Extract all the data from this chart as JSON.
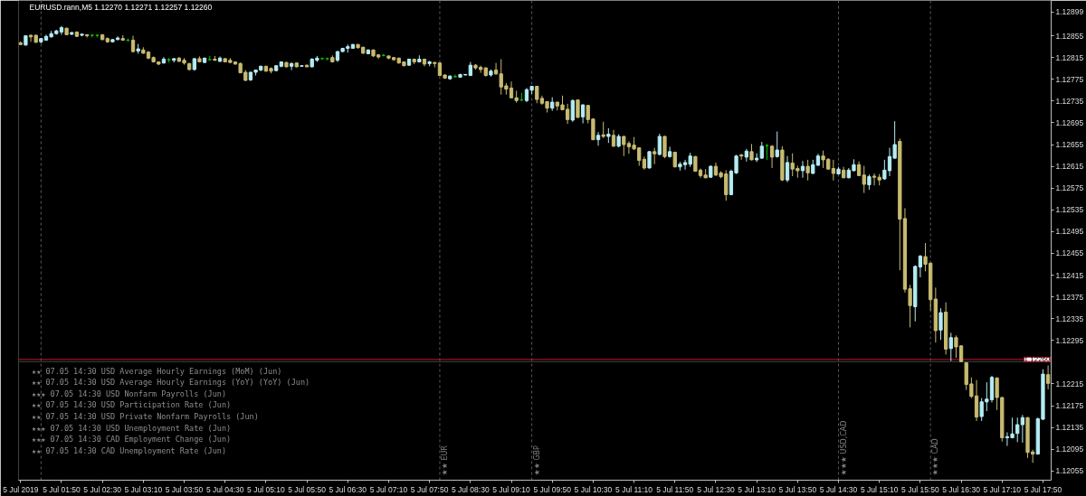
{
  "chart_data": {
    "type": "candlestick",
    "title": "EURUSD.rann,M5 1.12270 1.12271 1.12257 1.12260",
    "x": [
      "2019-07-05T01:10",
      "2019-07-05T01:15",
      "2019-07-05T01:20",
      "2019-07-05T01:25",
      "2019-07-05T01:30",
      "2019-07-05T01:35",
      "2019-07-05T01:40",
      "2019-07-05T01:45",
      "2019-07-05T01:50",
      "2019-07-05T01:55",
      "2019-07-05T02:00",
      "2019-07-05T02:05",
      "2019-07-05T02:10",
      "2019-07-05T02:15",
      "2019-07-05T02:20",
      "2019-07-05T02:25",
      "2019-07-05T02:30",
      "2019-07-05T02:35",
      "2019-07-05T02:40",
      "2019-07-05T02:45",
      "2019-07-05T02:50",
      "2019-07-05T02:55",
      "2019-07-05T03:00",
      "2019-07-05T03:05",
      "2019-07-05T03:10",
      "2019-07-05T03:15",
      "2019-07-05T03:20",
      "2019-07-05T03:25",
      "2019-07-05T03:30",
      "2019-07-05T03:35",
      "2019-07-05T03:40",
      "2019-07-05T03:45",
      "2019-07-05T03:50",
      "2019-07-05T03:55",
      "2019-07-05T04:00",
      "2019-07-05T04:05",
      "2019-07-05T04:10",
      "2019-07-05T04:15",
      "2019-07-05T04:20",
      "2019-07-05T04:25",
      "2019-07-05T04:30",
      "2019-07-05T04:35",
      "2019-07-05T04:40",
      "2019-07-05T04:45",
      "2019-07-05T04:50",
      "2019-07-05T04:55",
      "2019-07-05T05:00",
      "2019-07-05T05:05",
      "2019-07-05T05:10",
      "2019-07-05T05:15",
      "2019-07-05T05:20",
      "2019-07-05T05:25",
      "2019-07-05T05:30",
      "2019-07-05T05:35",
      "2019-07-05T05:40",
      "2019-07-05T05:45",
      "2019-07-05T05:50",
      "2019-07-05T05:55",
      "2019-07-05T06:00",
      "2019-07-05T06:05",
      "2019-07-05T06:10",
      "2019-07-05T06:15",
      "2019-07-05T06:20",
      "2019-07-05T06:25",
      "2019-07-05T06:30",
      "2019-07-05T06:35",
      "2019-07-05T06:40",
      "2019-07-05T06:45",
      "2019-07-05T06:50",
      "2019-07-05T06:55",
      "2019-07-05T07:00",
      "2019-07-05T07:05",
      "2019-07-05T07:10",
      "2019-07-05T07:15",
      "2019-07-05T07:20",
      "2019-07-05T07:25",
      "2019-07-05T07:30",
      "2019-07-05T07:35",
      "2019-07-05T07:40",
      "2019-07-05T07:45",
      "2019-07-05T07:50",
      "2019-07-05T07:55",
      "2019-07-05T08:00",
      "2019-07-05T08:05",
      "2019-07-05T08:10",
      "2019-07-05T08:15",
      "2019-07-05T08:20",
      "2019-07-05T08:25",
      "2019-07-05T08:30",
      "2019-07-05T08:35",
      "2019-07-05T08:40",
      "2019-07-05T08:45",
      "2019-07-05T08:50",
      "2019-07-05T08:55",
      "2019-07-05T09:00",
      "2019-07-05T09:05",
      "2019-07-05T09:10",
      "2019-07-05T09:15",
      "2019-07-05T09:20",
      "2019-07-05T09:25",
      "2019-07-05T09:30",
      "2019-07-05T09:35",
      "2019-07-05T09:40",
      "2019-07-05T09:45",
      "2019-07-05T09:50",
      "2019-07-05T09:55",
      "2019-07-05T10:00",
      "2019-07-05T10:05",
      "2019-07-05T10:10",
      "2019-07-05T10:15",
      "2019-07-05T10:20",
      "2019-07-05T10:25",
      "2019-07-05T10:30",
      "2019-07-05T10:35",
      "2019-07-05T10:40",
      "2019-07-05T10:45",
      "2019-07-05T10:50",
      "2019-07-05T10:55",
      "2019-07-05T11:00",
      "2019-07-05T11:05",
      "2019-07-05T11:10",
      "2019-07-05T11:15",
      "2019-07-05T11:20",
      "2019-07-05T11:25",
      "2019-07-05T11:30",
      "2019-07-05T11:35",
      "2019-07-05T11:40",
      "2019-07-05T11:45",
      "2019-07-05T11:50",
      "2019-07-05T11:55",
      "2019-07-05T12:00",
      "2019-07-05T12:05",
      "2019-07-05T12:10",
      "2019-07-05T12:15",
      "2019-07-05T12:20",
      "2019-07-05T12:25",
      "2019-07-05T12:30",
      "2019-07-05T12:35",
      "2019-07-05T12:40",
      "2019-07-05T12:45",
      "2019-07-05T12:50",
      "2019-07-05T12:55",
      "2019-07-05T13:00",
      "2019-07-05T13:05",
      "2019-07-05T13:10",
      "2019-07-05T13:15",
      "2019-07-05T13:20",
      "2019-07-05T13:25",
      "2019-07-05T13:30",
      "2019-07-05T13:35",
      "2019-07-05T13:40",
      "2019-07-05T13:45",
      "2019-07-05T13:50",
      "2019-07-05T13:55",
      "2019-07-05T14:00",
      "2019-07-05T14:05",
      "2019-07-05T14:10",
      "2019-07-05T14:15",
      "2019-07-05T14:20",
      "2019-07-05T14:25",
      "2019-07-05T14:30",
      "2019-07-05T14:35",
      "2019-07-05T14:40",
      "2019-07-05T14:45",
      "2019-07-05T14:50",
      "2019-07-05T14:55",
      "2019-07-05T15:00",
      "2019-07-05T15:05",
      "2019-07-05T15:10",
      "2019-07-05T15:15",
      "2019-07-05T15:20",
      "2019-07-05T15:25",
      "2019-07-05T15:30",
      "2019-07-05T15:35",
      "2019-07-05T15:40",
      "2019-07-05T15:45",
      "2019-07-05T15:50",
      "2019-07-05T15:55",
      "2019-07-05T16:00",
      "2019-07-05T16:05",
      "2019-07-05T16:10",
      "2019-07-05T16:15",
      "2019-07-05T16:20",
      "2019-07-05T16:25",
      "2019-07-05T16:30",
      "2019-07-05T16:35",
      "2019-07-05T16:40",
      "2019-07-05T16:45",
      "2019-07-05T16:50",
      "2019-07-05T16:55",
      "2019-07-05T17:00",
      "2019-07-05T17:05",
      "2019-07-05T17:10",
      "2019-07-05T17:15",
      "2019-07-05T17:20",
      "2019-07-05T17:25",
      "2019-07-05T17:30",
      "2019-07-05T17:35",
      "2019-07-05T17:40",
      "2019-07-05T17:45",
      "2019-07-05T17:50",
      "2019-07-05T17:55"
    ],
    "ohlc": [
      [
        1.12842,
        1.12845,
        1.12838,
        1.12839
      ],
      [
        1.12838,
        1.12856,
        1.12837,
        1.12855
      ],
      [
        1.12856,
        1.12857,
        1.12844,
        1.12853
      ],
      [
        1.12856,
        1.12857,
        1.12842,
        1.12843
      ],
      [
        1.12844,
        1.12851,
        1.12841,
        1.1285
      ],
      [
        1.12847,
        1.12857,
        1.12846,
        1.12854
      ],
      [
        1.12853,
        1.12864,
        1.12852,
        1.12859
      ],
      [
        1.12859,
        1.12866,
        1.12857,
        1.12864
      ],
      [
        1.12862,
        1.12873,
        1.12857,
        1.1287
      ],
      [
        1.12869,
        1.1287,
        1.12856,
        1.12857
      ],
      [
        1.12858,
        1.12862,
        1.12856,
        1.12861
      ],
      [
        1.12862,
        1.12863,
        1.12853,
        1.12854
      ],
      [
        1.12856,
        1.12859,
        1.12854,
        1.12858
      ],
      [
        1.12857,
        1.12858,
        1.12852,
        1.12855
      ],
      [
        1.12856,
        1.12858,
        1.12852,
        1.12856
      ],
      [
        1.12856,
        1.12857,
        1.12852,
        1.12856
      ],
      [
        1.12857,
        1.12858,
        1.12847,
        1.12848
      ],
      [
        1.1285,
        1.12852,
        1.12842,
        1.12844
      ],
      [
        1.12844,
        1.12849,
        1.12843,
        1.12848
      ],
      [
        1.12848,
        1.12854,
        1.12847,
        1.12851
      ],
      [
        1.1285,
        1.12856,
        1.12846,
        1.12847
      ],
      [
        1.12847,
        1.1285,
        1.12844,
        1.12847
      ],
      [
        1.12847,
        1.12855,
        1.12824,
        1.12826
      ],
      [
        1.12827,
        1.1284,
        1.12822,
        1.12831
      ],
      [
        1.12829,
        1.12834,
        1.12822,
        1.12823
      ],
      [
        1.12825,
        1.12827,
        1.12812,
        1.12814
      ],
      [
        1.12815,
        1.12817,
        1.12806,
        1.12807
      ],
      [
        1.12807,
        1.12808,
        1.12801,
        1.12803
      ],
      [
        1.12805,
        1.12816,
        1.12804,
        1.12812
      ],
      [
        1.12811,
        1.12814,
        1.12806,
        1.12811
      ],
      [
        1.1281,
        1.12814,
        1.12806,
        1.12813
      ],
      [
        1.12814,
        1.12816,
        1.12807,
        1.12808
      ],
      [
        1.1281,
        1.12814,
        1.12802,
        1.12805
      ],
      [
        1.12804,
        1.12805,
        1.12791,
        1.12793
      ],
      [
        1.12793,
        1.12814,
        1.12791,
        1.12813
      ],
      [
        1.12813,
        1.12817,
        1.12806,
        1.12807
      ],
      [
        1.12806,
        1.12815,
        1.12805,
        1.12814
      ],
      [
        1.12811,
        1.12818,
        1.1281,
        1.12811
      ],
      [
        1.12812,
        1.12818,
        1.12809,
        1.1281
      ],
      [
        1.12808,
        1.12817,
        1.12807,
        1.12814
      ],
      [
        1.12813,
        1.12814,
        1.12806,
        1.12807
      ],
      [
        1.1281,
        1.12814,
        1.12805,
        1.12806
      ],
      [
        1.12807,
        1.12808,
        1.12802,
        1.12803
      ],
      [
        1.12804,
        1.12806,
        1.12786,
        1.12787
      ],
      [
        1.12788,
        1.12792,
        1.12772,
        1.12773
      ],
      [
        1.12774,
        1.12789,
        1.12772,
        1.12788
      ],
      [
        1.12788,
        1.12793,
        1.12782,
        1.12792
      ],
      [
        1.12792,
        1.128,
        1.1279,
        1.12799
      ],
      [
        1.12799,
        1.128,
        1.12789,
        1.1279
      ],
      [
        1.12795,
        1.12797,
        1.12786,
        1.1279
      ],
      [
        1.12791,
        1.12801,
        1.1279,
        1.128
      ],
      [
        1.12799,
        1.12808,
        1.12797,
        1.12807
      ],
      [
        1.12806,
        1.12807,
        1.12797,
        1.12798
      ],
      [
        1.12799,
        1.12806,
        1.12792,
        1.12804
      ],
      [
        1.12805,
        1.12806,
        1.12797,
        1.12798
      ],
      [
        1.12799,
        1.12801,
        1.12798,
        1.128
      ],
      [
        1.12801,
        1.12802,
        1.12797,
        1.12798
      ],
      [
        1.12798,
        1.12814,
        1.12797,
        1.12812
      ],
      [
        1.1281,
        1.12818,
        1.12807,
        1.12814
      ],
      [
        1.12813,
        1.12815,
        1.12811,
        1.12813
      ],
      [
        1.12813,
        1.12815,
        1.1281,
        1.12813
      ],
      [
        1.12815,
        1.12819,
        1.12806,
        1.12807
      ],
      [
        1.1281,
        1.12827,
        1.12807,
        1.12826
      ],
      [
        1.12826,
        1.12833,
        1.12825,
        1.12832
      ],
      [
        1.12832,
        1.12839,
        1.12824,
        1.12835
      ],
      [
        1.12832,
        1.1284,
        1.12831,
        1.12839
      ],
      [
        1.12839,
        1.1284,
        1.12832,
        1.12833
      ],
      [
        1.12834,
        1.12835,
        1.12822,
        1.12823
      ],
      [
        1.12822,
        1.1283,
        1.12821,
        1.12829
      ],
      [
        1.12829,
        1.1283,
        1.12816,
        1.12818
      ],
      [
        1.1282,
        1.12821,
        1.12813,
        1.12816
      ],
      [
        1.12819,
        1.12822,
        1.12817,
        1.12819
      ],
      [
        1.12818,
        1.12819,
        1.12812,
        1.12814
      ],
      [
        1.12815,
        1.12816,
        1.12809,
        1.12811
      ],
      [
        1.12814,
        1.12815,
        1.12804,
        1.12805
      ],
      [
        1.12807,
        1.12808,
        1.12799,
        1.128
      ],
      [
        1.12801,
        1.12813,
        1.128,
        1.12812
      ],
      [
        1.12812,
        1.12813,
        1.12803,
        1.12807
      ],
      [
        1.12807,
        1.12819,
        1.12806,
        1.12812
      ],
      [
        1.12812,
        1.12813,
        1.12799,
        1.12803
      ],
      [
        1.12804,
        1.12809,
        1.12799,
        1.12807
      ],
      [
        1.12806,
        1.12807,
        1.12797,
        1.12804
      ],
      [
        1.12805,
        1.12806,
        1.12781,
        1.12782
      ],
      [
        1.12783,
        1.12784,
        1.12776,
        1.12777
      ],
      [
        1.12776,
        1.12782,
        1.12774,
        1.12781
      ],
      [
        1.1278,
        1.12784,
        1.12778,
        1.1278
      ],
      [
        1.12779,
        1.12785,
        1.12778,
        1.12784
      ],
      [
        1.12783,
        1.12784,
        1.12782,
        1.12784
      ],
      [
        1.12782,
        1.12807,
        1.12781,
        1.12801
      ],
      [
        1.12801,
        1.12803,
        1.12793,
        1.12796
      ],
      [
        1.12797,
        1.128,
        1.12787,
        1.12793
      ],
      [
        1.12796,
        1.12797,
        1.1278,
        1.12782
      ],
      [
        1.12783,
        1.12793,
        1.1278,
        1.1279
      ],
      [
        1.12792,
        1.12805,
        1.12783,
        1.12785
      ],
      [
        1.12785,
        1.12812,
        1.12747,
        1.12761
      ],
      [
        1.12763,
        1.12768,
        1.12747,
        1.12757
      ],
      [
        1.12759,
        1.12771,
        1.1274,
        1.12741
      ],
      [
        1.12741,
        1.12754,
        1.12732,
        1.12736
      ],
      [
        1.12737,
        1.1275,
        1.12735,
        1.12737
      ],
      [
        1.12736,
        1.12759,
        1.12733,
        1.12756
      ],
      [
        1.12755,
        1.12763,
        1.12748,
        1.12762
      ],
      [
        1.12762,
        1.12763,
        1.12731,
        1.12738
      ],
      [
        1.1274,
        1.12745,
        1.12728,
        1.12731
      ],
      [
        1.12734,
        1.12735,
        1.12714,
        1.12722
      ],
      [
        1.12722,
        1.12742,
        1.12717,
        1.12733
      ],
      [
        1.12733,
        1.12734,
        1.12718,
        1.12726
      ],
      [
        1.12728,
        1.12745,
        1.12718,
        1.12719
      ],
      [
        1.1272,
        1.1273,
        1.12693,
        1.12701
      ],
      [
        1.127,
        1.12738,
        1.12697,
        1.12736
      ],
      [
        1.12737,
        1.12738,
        1.12704,
        1.12705
      ],
      [
        1.12706,
        1.12729,
        1.12694,
        1.12728
      ],
      [
        1.12727,
        1.12728,
        1.12694,
        1.12701
      ],
      [
        1.12702,
        1.12703,
        1.12663,
        1.12664
      ],
      [
        1.12664,
        1.12678,
        1.12653,
        1.12672
      ],
      [
        1.12673,
        1.12697,
        1.12667,
        1.1267
      ],
      [
        1.1267,
        1.12685,
        1.12658,
        1.12674
      ],
      [
        1.12672,
        1.12682,
        1.12651,
        1.12652
      ],
      [
        1.12652,
        1.12674,
        1.1265,
        1.1267
      ],
      [
        1.1267,
        1.12671,
        1.12634,
        1.12655
      ],
      [
        1.12657,
        1.12661,
        1.12638,
        1.12651
      ],
      [
        1.12654,
        1.12669,
        1.12645,
        1.12647
      ],
      [
        1.12649,
        1.1265,
        1.12616,
        1.12626
      ],
      [
        1.12628,
        1.12633,
        1.12609,
        1.12612
      ],
      [
        1.12612,
        1.12643,
        1.12611,
        1.12642
      ],
      [
        1.12642,
        1.12649,
        1.12619,
        1.12638
      ],
      [
        1.12637,
        1.12675,
        1.12635,
        1.1267
      ],
      [
        1.1267,
        1.12671,
        1.1263,
        1.12633
      ],
      [
        1.12633,
        1.12651,
        1.12631,
        1.12642
      ],
      [
        1.12641,
        1.12642,
        1.12613,
        1.12614
      ],
      [
        1.12614,
        1.12623,
        1.12607,
        1.12619
      ],
      [
        1.12618,
        1.12627,
        1.12609,
        1.12622
      ],
      [
        1.12619,
        1.1264,
        1.12614,
        1.12634
      ],
      [
        1.12633,
        1.12634,
        1.12605,
        1.12606
      ],
      [
        1.12608,
        1.12611,
        1.12594,
        1.12598
      ],
      [
        1.12599,
        1.1261,
        1.12593,
        1.12594
      ],
      [
        1.12595,
        1.12617,
        1.12594,
        1.12615
      ],
      [
        1.12615,
        1.12622,
        1.12597,
        1.12599
      ],
      [
        1.12603,
        1.12606,
        1.12593,
        1.12596
      ],
      [
        1.12601,
        1.12608,
        1.12552,
        1.12563
      ],
      [
        1.12563,
        1.12609,
        1.12562,
        1.12606
      ],
      [
        1.12603,
        1.12636,
        1.12601,
        1.12634
      ],
      [
        1.12636,
        1.12638,
        1.12627,
        1.12634
      ],
      [
        1.12632,
        1.12647,
        1.12624,
        1.12643
      ],
      [
        1.12642,
        1.12656,
        1.12626,
        1.12627
      ],
      [
        1.12627,
        1.12639,
        1.12623,
        1.1263
      ],
      [
        1.1263,
        1.1266,
        1.12629,
        1.12652
      ],
      [
        1.12653,
        1.12656,
        1.12627,
        1.12653
      ],
      [
        1.12652,
        1.12654,
        1.12612,
        1.12632
      ],
      [
        1.12633,
        1.12679,
        1.12631,
        1.12645
      ],
      [
        1.12645,
        1.12652,
        1.12588,
        1.1259
      ],
      [
        1.1259,
        1.12634,
        1.12586,
        1.12622
      ],
      [
        1.12621,
        1.12639,
        1.12597,
        1.1261
      ],
      [
        1.12611,
        1.12616,
        1.12594,
        1.12607
      ],
      [
        1.12607,
        1.12625,
        1.12594,
        1.12615
      ],
      [
        1.12615,
        1.12627,
        1.12589,
        1.12603
      ],
      [
        1.12602,
        1.12627,
        1.12601,
        1.12618
      ],
      [
        1.12617,
        1.12638,
        1.12616,
        1.12634
      ],
      [
        1.12634,
        1.12644,
        1.12612,
        1.12627
      ],
      [
        1.12628,
        1.1263,
        1.12609,
        1.1261
      ],
      [
        1.12611,
        1.12627,
        1.12589,
        1.12602
      ],
      [
        1.12601,
        1.12614,
        1.126,
        1.1261
      ],
      [
        1.12608,
        1.12614,
        1.12593,
        1.12594
      ],
      [
        1.12594,
        1.12612,
        1.12593,
        1.12608
      ],
      [
        1.12607,
        1.12628,
        1.12606,
        1.12618
      ],
      [
        1.12618,
        1.12624,
        1.12597,
        1.12598
      ],
      [
        1.12599,
        1.12616,
        1.12566,
        1.12582
      ],
      [
        1.12581,
        1.126,
        1.12572,
        1.12596
      ],
      [
        1.12597,
        1.12602,
        1.1258,
        1.12595
      ],
      [
        1.12595,
        1.12601,
        1.1258,
        1.1259
      ],
      [
        1.12592,
        1.12627,
        1.1259,
        1.12608
      ],
      [
        1.12607,
        1.12649,
        1.12597,
        1.12633
      ],
      [
        1.1263,
        1.12698,
        1.12629,
        1.12655
      ],
      [
        1.12661,
        1.12666,
        1.12424,
        1.12518
      ],
      [
        1.12519,
        1.12538,
        1.12383,
        1.12389
      ],
      [
        1.1239,
        1.12397,
        1.12319,
        1.12359
      ],
      [
        1.12357,
        1.12433,
        1.1233,
        1.12431
      ],
      [
        1.1243,
        1.12452,
        1.12411,
        1.1245
      ],
      [
        1.12449,
        1.12474,
        1.12422,
        1.12435
      ],
      [
        1.12437,
        1.12438,
        1.1235,
        1.1237
      ],
      [
        1.12371,
        1.12392,
        1.12291,
        1.12313
      ],
      [
        1.12314,
        1.12354,
        1.12296,
        1.12346
      ],
      [
        1.12347,
        1.12365,
        1.12269,
        1.12279
      ],
      [
        1.1228,
        1.12309,
        1.12257,
        1.123
      ],
      [
        1.123,
        1.12304,
        1.12263,
        1.12283
      ],
      [
        1.12285,
        1.12286,
        1.12255,
        1.12256
      ],
      [
        1.12254,
        1.12255,
        1.12204,
        1.12214
      ],
      [
        1.12215,
        1.12227,
        1.12189,
        1.12192
      ],
      [
        1.12193,
        1.12222,
        1.12147,
        1.12154
      ],
      [
        1.12155,
        1.12189,
        1.12147,
        1.12182
      ],
      [
        1.12182,
        1.12218,
        1.12165,
        1.12187
      ],
      [
        1.12186,
        1.1223,
        1.12181,
        1.12227
      ],
      [
        1.12226,
        1.12227,
        1.12167,
        1.1219
      ],
      [
        1.1219,
        1.12191,
        1.12109,
        1.12116
      ],
      [
        1.12116,
        1.12126,
        1.12101,
        1.12118
      ],
      [
        1.12116,
        1.12153,
        1.12115,
        1.12123
      ],
      [
        1.12124,
        1.12153,
        1.12108,
        1.1214
      ],
      [
        1.1214,
        1.12158,
        1.12107,
        1.12153
      ],
      [
        1.12153,
        1.12154,
        1.12079,
        1.12089
      ],
      [
        1.1209,
        1.12094,
        1.1207,
        1.12086
      ],
      [
        1.12086,
        1.12153,
        1.12085,
        1.12151
      ],
      [
        1.1215,
        1.12242,
        1.12149,
        1.12233
      ],
      [
        1.12232,
        1.12249,
        1.12205,
        1.12216
      ]
    ],
    "colors": [
      "#c8bb70",
      "#b4ecf4",
      "#c8bb70",
      "#c8bb70",
      "#b4ecf4",
      "#b4ecf4",
      "#b4ecf4",
      "#b4ecf4",
      "#b4ecf4",
      "#c8bb70",
      "#b4ecf4",
      "#c8bb70",
      "#b4ecf4",
      "#c8bb70",
      "#00c000",
      "#00c000",
      "#c8bb70",
      "#c8bb70",
      "#b4ecf4",
      "#b4ecf4",
      "#c8bb70",
      "#00c000",
      "#c8bb70",
      "#b4ecf4",
      "#c8bb70",
      "#c8bb70",
      "#c8bb70",
      "#c8bb70",
      "#b4ecf4",
      "#00c000",
      "#b4ecf4",
      "#c8bb70",
      "#c8bb70",
      "#c8bb70",
      "#b4ecf4",
      "#c8bb70",
      "#b4ecf4",
      "#00c000",
      "#c8bb70",
      "#b4ecf4",
      "#c8bb70",
      "#c8bb70",
      "#c8bb70",
      "#c8bb70",
      "#c8bb70",
      "#b4ecf4",
      "#b4ecf4",
      "#b4ecf4",
      "#c8bb70",
      "#c8bb70",
      "#b4ecf4",
      "#b4ecf4",
      "#c8bb70",
      "#b4ecf4",
      "#c8bb70",
      "#b4ecf4",
      "#c8bb70",
      "#b4ecf4",
      "#b4ecf4",
      "#00c000",
      "#00c000",
      "#c8bb70",
      "#b4ecf4",
      "#b4ecf4",
      "#b4ecf4",
      "#b4ecf4",
      "#c8bb70",
      "#c8bb70",
      "#b4ecf4",
      "#c8bb70",
      "#c8bb70",
      "#00c000",
      "#c8bb70",
      "#c8bb70",
      "#c8bb70",
      "#c8bb70",
      "#b4ecf4",
      "#c8bb70",
      "#b4ecf4",
      "#c8bb70",
      "#b4ecf4",
      "#c8bb70",
      "#c8bb70",
      "#c8bb70",
      "#b4ecf4",
      "#00c000",
      "#b4ecf4",
      "#b4ecf4",
      "#b4ecf4",
      "#c8bb70",
      "#c8bb70",
      "#c8bb70",
      "#b4ecf4",
      "#c8bb70",
      "#c8bb70",
      "#c8bb70",
      "#c8bb70",
      "#c8bb70",
      "#00c000",
      "#b4ecf4",
      "#b4ecf4",
      "#c8bb70",
      "#c8bb70",
      "#c8bb70",
      "#b4ecf4",
      "#c8bb70",
      "#c8bb70",
      "#c8bb70",
      "#b4ecf4",
      "#c8bb70",
      "#b4ecf4",
      "#c8bb70",
      "#c8bb70",
      "#b4ecf4",
      "#c8bb70",
      "#b4ecf4",
      "#c8bb70",
      "#b4ecf4",
      "#c8bb70",
      "#c8bb70",
      "#c8bb70",
      "#c8bb70",
      "#c8bb70",
      "#b4ecf4",
      "#c8bb70",
      "#b4ecf4",
      "#c8bb70",
      "#b4ecf4",
      "#c8bb70",
      "#b4ecf4",
      "#b4ecf4",
      "#b4ecf4",
      "#c8bb70",
      "#c8bb70",
      "#c8bb70",
      "#b4ecf4",
      "#c8bb70",
      "#c8bb70",
      "#c8bb70",
      "#b4ecf4",
      "#b4ecf4",
      "#c8bb70",
      "#b4ecf4",
      "#c8bb70",
      "#b4ecf4",
      "#b4ecf4",
      "#00c000",
      "#c8bb70",
      "#b4ecf4",
      "#c8bb70",
      "#b4ecf4",
      "#c8bb70",
      "#c8bb70",
      "#b4ecf4",
      "#c8bb70",
      "#b4ecf4",
      "#b4ecf4",
      "#c8bb70",
      "#c8bb70",
      "#c8bb70",
      "#b4ecf4",
      "#c8bb70",
      "#b4ecf4",
      "#b4ecf4",
      "#c8bb70",
      "#c8bb70",
      "#b4ecf4",
      "#c8bb70",
      "#c8bb70",
      "#b4ecf4",
      "#b4ecf4",
      "#b4ecf4",
      "#c8bb70",
      "#c8bb70",
      "#c8bb70",
      "#b4ecf4",
      "#b4ecf4",
      "#c8bb70",
      "#c8bb70",
      "#c8bb70",
      "#b4ecf4",
      "#c8bb70",
      "#b4ecf4",
      "#c8bb70",
      "#c8bb70",
      "#c8bb70",
      "#c8bb70",
      "#c8bb70",
      "#b4ecf4",
      "#b4ecf4",
      "#b4ecf4",
      "#c8bb70",
      "#c8bb70",
      "#b4ecf4",
      "#b4ecf4",
      "#b4ecf4",
      "#b4ecf4",
      "#c8bb70",
      "#c8bb70",
      "#b4ecf4",
      "#b4ecf4",
      "#c8bb70"
    ],
    "xlim": [
      "2019-07-05T01:08",
      "2019-07-05T17:58"
    ],
    "xticks": [
      {
        "value": "2019-07-05T01:10",
        "label": "5 Jul 2019"
      },
      {
        "value": "2019-07-05T01:50",
        "label": "5 Jul 01:50"
      },
      {
        "value": "2019-07-05T02:30",
        "label": "5 Jul 02:30"
      },
      {
        "value": "2019-07-05T03:10",
        "label": "5 Jul 03:10"
      },
      {
        "value": "2019-07-05T03:50",
        "label": "5 Jul 03:50"
      },
      {
        "value": "2019-07-05T04:30",
        "label": "5 Jul 04:30"
      },
      {
        "value": "2019-07-05T05:10",
        "label": "5 Jul 05:10"
      },
      {
        "value": "2019-07-05T05:50",
        "label": "5 Jul 05:50"
      },
      {
        "value": "2019-07-05T06:30",
        "label": "5 Jul 06:30"
      },
      {
        "value": "2019-07-05T07:10",
        "label": "5 Jul 07:10"
      },
      {
        "value": "2019-07-05T07:50",
        "label": "5 Jul 07:50"
      },
      {
        "value": "2019-07-05T08:30",
        "label": "5 Jul 08:30"
      },
      {
        "value": "2019-07-05T09:10",
        "label": "5 Jul 09:10"
      },
      {
        "value": "2019-07-05T09:50",
        "label": "5 Jul 09:50"
      },
      {
        "value": "2019-07-05T10:30",
        "label": "5 Jul 10:30"
      },
      {
        "value": "2019-07-05T11:10",
        "label": "5 Jul 11:10"
      },
      {
        "value": "2019-07-05T11:50",
        "label": "5 Jul 11:50"
      },
      {
        "value": "2019-07-05T12:30",
        "label": "5 Jul 12:30"
      },
      {
        "value": "2019-07-05T13:10",
        "label": "5 Jul 13:10"
      },
      {
        "value": "2019-07-05T13:50",
        "label": "5 Jul 13:50"
      },
      {
        "value": "2019-07-05T14:30",
        "label": "5 Jul 14:30"
      },
      {
        "value": "2019-07-05T15:10",
        "label": "5 Jul 15:10"
      },
      {
        "value": "2019-07-05T15:50",
        "label": "5 Jul 15:50"
      },
      {
        "value": "2019-07-05T16:30",
        "label": "5 Jul 16:30"
      },
      {
        "value": "2019-07-05T17:10",
        "label": "5 Jul 17:10"
      },
      {
        "value": "2019-07-05T17:50",
        "label": "5 Jul 17:50"
      }
    ],
    "ylim": [
      1.12038,
      1.1292
    ],
    "yticks": [
      1.12899,
      1.12855,
      1.12815,
      1.12775,
      1.12735,
      1.12695,
      1.12655,
      1.12615,
      1.12575,
      1.12535,
      1.12495,
      1.12455,
      1.12415,
      1.12375,
      1.12335,
      1.12295,
      1.12215,
      1.12175,
      1.12135,
      1.12095,
      1.12055
    ],
    "ref_lines": [
      {
        "axis": "y",
        "value": 1.1226,
        "label": "1.12260",
        "color": "#d2102a"
      },
      {
        "axis": "y",
        "value": 1.12256,
        "color": "#2f4f4f"
      },
      {
        "axis": "x",
        "value": "2019-07-05T01:30",
        "color": "#5a5a5a",
        "line_style": "dashed"
      },
      {
        "axis": "x",
        "value": "2019-07-05T08:00",
        "label": "★★ EUR",
        "color": "#5a5a5a",
        "line_style": "dashed"
      },
      {
        "axis": "x",
        "value": "2019-07-05T09:30",
        "label": "★★ GBP",
        "color": "#5a5a5a",
        "line_style": "dashed"
      },
      {
        "axis": "x",
        "value": "2019-07-05T14:30",
        "label": "★★★ USD,CAD",
        "color": "#5a5a5a",
        "line_style": "dashed"
      },
      {
        "axis": "x",
        "value": "2019-07-05T16:00",
        "label": "★★★ CAD",
        "color": "#5a5a5a",
        "line_style": "dashed"
      }
    ],
    "annotations": [
      "★★ 07.05 14:30 USD Average Hourly Earnings (MoM) (Jun)",
      "★★ 07.05 14:30 USD Average Hourly Earnings (YoY) (YoY) (Jun)",
      "★★★ 07.05 14:30 USD Nonfarm Payrolls (Jun)",
      "★★ 07.05 14:30 USD Participation Rate (Jun)",
      "★★ 07.05 14:30 USD Private Nonfarm Payrolls (Jun)",
      "★★★ 07.05 14:30 USD Unemployment Rate (Jun)",
      "★★★ 07.05 14:30 CAD Employment Change (Jun)",
      "★★ 07.05 14:30 CAD Unemployment Rate (Jun)"
    ]
  }
}
